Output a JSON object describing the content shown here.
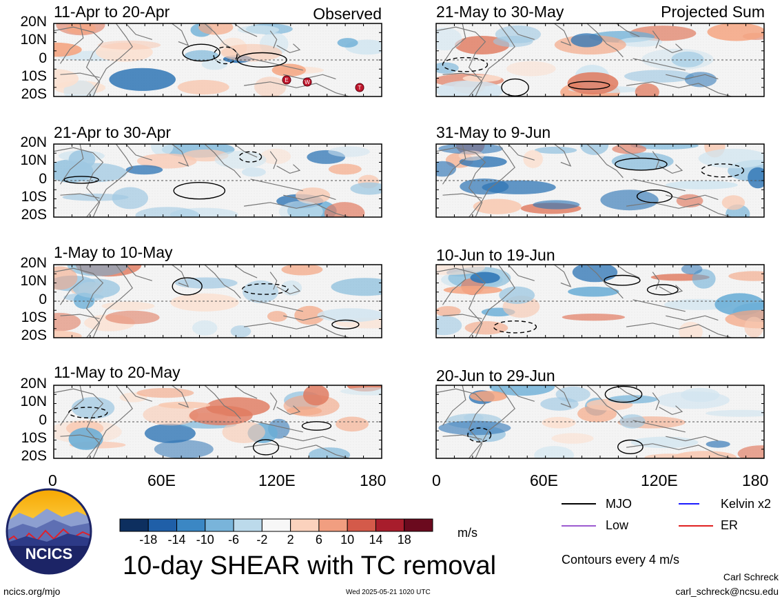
{
  "header": {
    "observed_label": "Observed",
    "projected_label": "Projected Sum"
  },
  "colors": {
    "land_outline": "#777777",
    "contour": "#000000",
    "mjo": "#000000",
    "kelvin": "#1a1aff",
    "low": "#9b59d0",
    "er": "#e02020",
    "tc_marker": "#c0162b"
  },
  "y_axis_labels": [
    "20N",
    "10N",
    "0",
    "10S",
    "20S"
  ],
  "x_axis_labels": [
    "0",
    "60E",
    "120E",
    "180"
  ],
  "panels_left": [
    {
      "title": "11-Apr to 20-Apr"
    },
    {
      "title": "21-Apr to 30-Apr"
    },
    {
      "title": "1-May to 10-May"
    },
    {
      "title": "11-May to 20-May"
    }
  ],
  "panels_right": [
    {
      "title": "21-May to 30-May"
    },
    {
      "title": "31-May to 9-Jun"
    },
    {
      "title": "10-Jun to 19-Jun"
    },
    {
      "title": "20-Jun to 29-Jun"
    }
  ],
  "tc_markers": [
    "E",
    "W",
    "T"
  ],
  "colorbar": {
    "labels": [
      "-18",
      "-14",
      "-10",
      "-6",
      "-2",
      "2",
      "6",
      "10",
      "14",
      "18"
    ],
    "colors": [
      "#0d2f5f",
      "#1f5fa8",
      "#3b87c4",
      "#79b4da",
      "#bcdaeb",
      "#f7f7f7",
      "#fbd2bd",
      "#f19e80",
      "#d45a4a",
      "#a81d2c",
      "#6b0a1e"
    ],
    "units": "m/s"
  },
  "legend": {
    "mjo": "MJO",
    "kelvin": "Kelvin x2",
    "low": "Low",
    "er": "ER",
    "contours_note": "Contours every 4 m/s"
  },
  "footer": {
    "title": "10-day SHEAR with TC removal",
    "logo_text": "NCICS",
    "url": "ncics.org/mjo",
    "timestamp": "Wed 2025-05-21 1020 UTC",
    "author": "Carl Schreck",
    "email": "carl_schreck@ncsu.edu"
  }
}
